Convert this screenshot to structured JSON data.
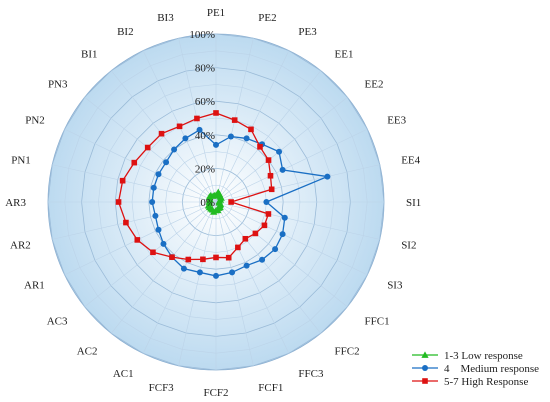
{
  "chart_data": {
    "type": "radar",
    "title": "",
    "categories": [
      "PE1",
      "PE2",
      "PE3",
      "EE1",
      "EE2",
      "EE3",
      "EE4",
      "SI1",
      "SI2",
      "SI3",
      "FFC1",
      "FFC2",
      "FFC3",
      "FCF1",
      "FCF2",
      "FCF3",
      "AC1",
      "AC2",
      "AC3",
      "AR1",
      "AR2",
      "AR3",
      "PN1",
      "PN2",
      "PN3",
      "BI1",
      "BI2",
      "BI3"
    ],
    "rlim": [
      0,
      100
    ],
    "rticks": [
      0,
      20,
      40,
      60,
      80,
      100
    ],
    "rtick_labels": [
      "0%",
      "20%",
      "40%",
      "60%",
      "80%",
      "100%"
    ],
    "grid": true,
    "legend_position": "bottom-right",
    "series": [
      {
        "name": "1-3 Low response",
        "color": "#22bb22",
        "marker": "triangle",
        "values": [
          4,
          6,
          5,
          4,
          4,
          3,
          2,
          2,
          2,
          3,
          3,
          4,
          4,
          5,
          5,
          6,
          5,
          5,
          5,
          5,
          4,
          4,
          4,
          4,
          5,
          5,
          4,
          4
        ]
      },
      {
        "name": "4    Medium response",
        "color": "#1a6fc4",
        "marker": "circle",
        "values": [
          34,
          40,
          42,
          44,
          48,
          44,
          68,
          30,
          42,
          44,
          45,
          44,
          42,
          43,
          44,
          43,
          44,
          42,
          40,
          38,
          37,
          38,
          38,
          38,
          38,
          40,
          42,
          44
        ]
      },
      {
        "name": "5-7 High Response",
        "color": "#dd1111",
        "marker": "square",
        "values": [
          53,
          50,
          48,
          42,
          40,
          36,
          34,
          9,
          32,
          32,
          30,
          28,
          30,
          34,
          33,
          35,
          38,
          42,
          48,
          52,
          55,
          58,
          57,
          54,
          52,
          52,
          50,
          51
        ]
      }
    ]
  }
}
